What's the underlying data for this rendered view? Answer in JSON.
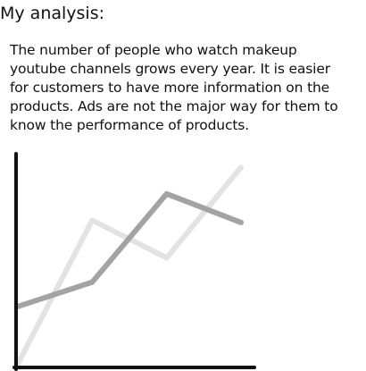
{
  "header": {
    "title": "My analysis:"
  },
  "analysis": {
    "lines": [
      "The number of people who watch makeup",
      "youtube channels grows every year. It is easier",
      "for customers to have more information on the",
      "products. Ads are not the major way for them to",
      "know the performance of products."
    ]
  },
  "chart_data": {
    "type": "line",
    "title": "",
    "xlabel": "",
    "ylabel": "",
    "x": [
      0,
      1,
      2,
      3
    ],
    "xlim": [
      0,
      3
    ],
    "ylim": [
      0,
      10
    ],
    "grid": false,
    "legend": "none",
    "series": [
      {
        "color": "#e3e3e3",
        "values": [
          0.0,
          6.5,
          4.8,
          8.9
        ]
      },
      {
        "color": "#a3a3a3",
        "values": [
          2.6,
          3.7,
          7.7,
          6.4
        ]
      }
    ]
  }
}
